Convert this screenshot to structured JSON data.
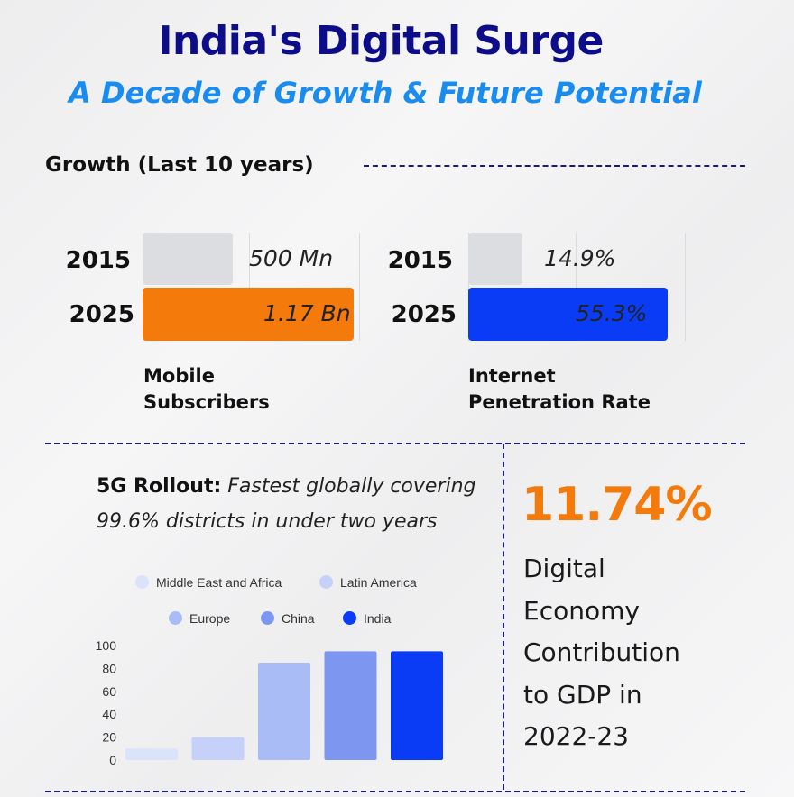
{
  "header": {
    "title": "India's Digital Surge",
    "subtitle": "A Decade of Growth & Future Potential"
  },
  "growth": {
    "section_title": "Growth (Last 10 years)",
    "mobile": {
      "label_line1": "Mobile",
      "label_line2": "Subscribers",
      "rows": [
        {
          "year": "2015",
          "value": 0.5,
          "value_label": "500 Mn",
          "color": "#dcdde0"
        },
        {
          "year": "2025",
          "value": 1.17,
          "value_label": "1.17 Bn",
          "color": "#f47a0b"
        }
      ]
    },
    "internet": {
      "label_line1": "Internet",
      "label_line2": "Penetration Rate",
      "rows": [
        {
          "year": "2015",
          "value": 14.9,
          "value_label": "14.9%",
          "color": "#dcdde0"
        },
        {
          "year": "2025",
          "value": 55.3,
          "value_label": "55.3%",
          "color": "#0a3cf5"
        }
      ]
    }
  },
  "rollout": {
    "bold": "5G Rollout:",
    "italic": "Fastest globally covering 99.6% districts in under two years"
  },
  "gdp": {
    "value": "11.74%",
    "line1": "Digital",
    "line2": "Economy",
    "line3": "Contribution",
    "line4": "to GDP in",
    "line5": "2022-23"
  },
  "chart_data": {
    "type": "bar",
    "title": "",
    "xlabel": "",
    "ylabel": "",
    "ylim": [
      0,
      100
    ],
    "yticks": [
      0,
      20,
      40,
      60,
      80,
      100
    ],
    "grid": false,
    "legend": "top",
    "categories": [
      "Middle East and Africa",
      "Latin America",
      "Europe",
      "China",
      "India"
    ],
    "values": [
      10,
      20,
      85,
      95,
      95
    ],
    "colors": [
      "#dbe3fb",
      "#c5d1f9",
      "#aabcf6",
      "#7d97f0",
      "#0a3cf5"
    ]
  }
}
